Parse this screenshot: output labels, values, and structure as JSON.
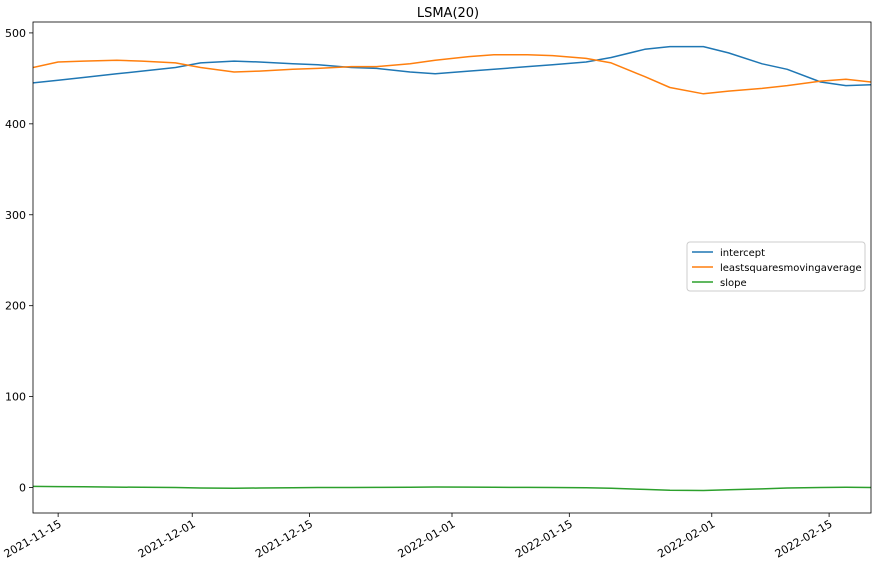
{
  "chart_data": {
    "type": "line",
    "title": "LSMA(20)",
    "xlabel": "",
    "ylabel": "",
    "x_axis": {
      "type": "date",
      "range": [
        "2021-11-12",
        "2022-02-20"
      ],
      "ticks": [
        "2021-11-15",
        "2021-12-01",
        "2021-12-15",
        "2022-01-01",
        "2022-01-15",
        "2022-02-01",
        "2022-02-15"
      ]
    },
    "y_axis": {
      "range": [
        -28,
        512
      ],
      "ticks": [
        0,
        100,
        200,
        300,
        400,
        500
      ]
    },
    "grid": false,
    "legend_position": "center-right",
    "x": [
      "2021-11-12",
      "2021-11-15",
      "2021-11-18",
      "2021-11-22",
      "2021-11-25",
      "2021-11-29",
      "2021-12-02",
      "2021-12-06",
      "2021-12-09",
      "2021-12-13",
      "2021-12-16",
      "2021-12-20",
      "2021-12-23",
      "2021-12-27",
      "2021-12-30",
      "2022-01-03",
      "2022-01-06",
      "2022-01-10",
      "2022-01-13",
      "2022-01-17",
      "2022-01-20",
      "2022-01-24",
      "2022-01-27",
      "2022-01-31",
      "2022-02-03",
      "2022-02-07",
      "2022-02-10",
      "2022-02-14",
      "2022-02-17",
      "2022-02-20"
    ],
    "series": [
      {
        "name": "intercept",
        "color": "#1f77b4",
        "values": [
          445,
          448,
          451,
          455,
          458,
          462,
          467,
          469,
          468,
          466,
          465,
          462,
          461,
          457,
          455,
          458,
          460,
          463,
          465,
          468,
          473,
          482,
          485,
          485,
          478,
          466,
          460,
          446,
          442,
          443
        ]
      },
      {
        "name": "leastsquaresmovingaverage",
        "color": "#ff7f0e",
        "values": [
          462,
          468,
          469,
          470,
          469,
          467,
          462,
          457,
          458,
          460,
          461,
          463,
          463,
          466,
          470,
          474,
          476,
          476,
          475,
          472,
          467,
          452,
          440,
          433,
          436,
          439,
          442,
          447,
          449,
          446
        ]
      },
      {
        "name": "slope",
        "color": "#2ca02c",
        "values": [
          1.2,
          1.0,
          0.8,
          0.5,
          0.3,
          0.0,
          -0.5,
          -0.8,
          -0.5,
          -0.3,
          0.0,
          0.0,
          0.2,
          0.4,
          0.6,
          0.5,
          0.3,
          0.2,
          0.0,
          -0.3,
          -0.8,
          -2.0,
          -3.0,
          -3.2,
          -2.5,
          -1.5,
          -0.5,
          0.0,
          0.3,
          0.0
        ]
      }
    ]
  }
}
